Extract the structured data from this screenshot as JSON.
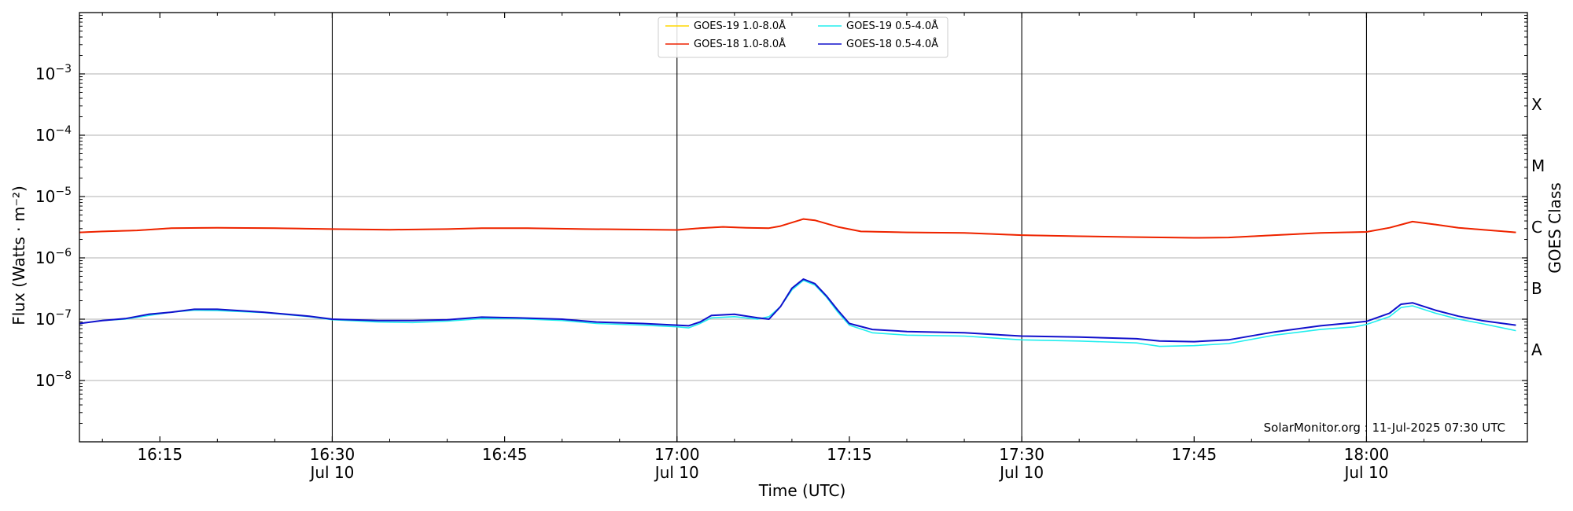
{
  "chart_data": {
    "type": "line",
    "title": "",
    "xlabel": "Time (UTC)",
    "ylabel": "Flux (Watts · m⁻²)",
    "right_label": "GOES Class",
    "y_scale": "log",
    "xlim": [
      "16:08",
      "18:14"
    ],
    "ylim": [
      1e-09,
      0.01
    ],
    "grid": "horizontal",
    "legend_position": "top-center",
    "annotation": "SolarMonitor.org : 11-Jul-2025 07:30 UTC",
    "x_ticks": [
      {
        "time": "16:15",
        "label": "16:15",
        "date": ""
      },
      {
        "time": "16:30",
        "label": "16:30",
        "date": "Jul 10"
      },
      {
        "time": "16:45",
        "label": "16:45",
        "date": ""
      },
      {
        "time": "17:00",
        "label": "17:00",
        "date": "Jul 10"
      },
      {
        "time": "17:15",
        "label": "17:15",
        "date": ""
      },
      {
        "time": "17:30",
        "label": "17:30",
        "date": "Jul 10"
      },
      {
        "time": "17:45",
        "label": "17:45",
        "date": ""
      },
      {
        "time": "18:00",
        "label": "18:00",
        "date": "Jul 10"
      }
    ],
    "y_ticks": [
      {
        "value": 1e-08,
        "base": "10",
        "exp": "−8"
      },
      {
        "value": 1e-07,
        "base": "10",
        "exp": "−7"
      },
      {
        "value": 1e-06,
        "base": "10",
        "exp": "−6"
      },
      {
        "value": 1e-05,
        "base": "10",
        "exp": "−5"
      },
      {
        "value": 0.0001,
        "base": "10",
        "exp": "−4"
      },
      {
        "value": 0.001,
        "base": "10",
        "exp": "−3"
      }
    ],
    "vertical_lines": [
      "16:30",
      "17:00",
      "17:30",
      "18:00"
    ],
    "classes": [
      {
        "label": "A",
        "value": 3.16e-08
      },
      {
        "label": "B",
        "value": 3.16e-07
      },
      {
        "label": "C",
        "value": 3.16e-06
      },
      {
        "label": "M",
        "value": 3.16e-05
      },
      {
        "label": "X",
        "value": 0.000316
      }
    ],
    "series": [
      {
        "name": "GOES-19 1.0-8.0Å",
        "color": "#ffd700",
        "points": [
          [
            "16:08",
            2.6e-06
          ],
          [
            "16:10",
            2.7e-06
          ],
          [
            "16:13",
            2.8e-06
          ],
          [
            "16:16",
            3.05e-06
          ],
          [
            "16:20",
            3.1e-06
          ],
          [
            "16:25",
            3.05e-06
          ],
          [
            "16:30",
            2.95e-06
          ],
          [
            "16:35",
            2.88e-06
          ],
          [
            "16:40",
            2.95e-06
          ],
          [
            "16:43",
            3.05e-06
          ],
          [
            "16:47",
            3.05e-06
          ],
          [
            "16:52",
            2.95e-06
          ],
          [
            "16:56",
            2.9e-06
          ],
          [
            "17:00",
            2.85e-06
          ],
          [
            "17:02",
            3.05e-06
          ],
          [
            "17:04",
            3.2e-06
          ],
          [
            "17:06",
            3.1e-06
          ],
          [
            "17:08",
            3.05e-06
          ],
          [
            "17:09",
            3.3e-06
          ],
          [
            "17:11",
            4.3e-06
          ],
          [
            "17:12",
            4.1e-06
          ],
          [
            "17:14",
            3.2e-06
          ],
          [
            "17:16",
            2.7e-06
          ],
          [
            "17:20",
            2.6e-06
          ],
          [
            "17:25",
            2.55e-06
          ],
          [
            "17:30",
            2.35e-06
          ],
          [
            "17:35",
            2.25e-06
          ],
          [
            "17:40",
            2.18e-06
          ],
          [
            "17:45",
            2.12e-06
          ],
          [
            "17:48",
            2.15e-06
          ],
          [
            "17:52",
            2.35e-06
          ],
          [
            "17:56",
            2.55e-06
          ],
          [
            "18:00",
            2.65e-06
          ],
          [
            "18:02",
            3.1e-06
          ],
          [
            "18:04",
            3.9e-06
          ],
          [
            "18:06",
            3.5e-06
          ],
          [
            "18:08",
            3.1e-06
          ],
          [
            "18:13",
            2.6e-06
          ]
        ]
      },
      {
        "name": "GOES-18 1.0-8.0Å",
        "color": "#ee2200",
        "points": [
          [
            "16:08",
            2.6e-06
          ],
          [
            "16:10",
            2.7e-06
          ],
          [
            "16:13",
            2.8e-06
          ],
          [
            "16:16",
            3.05e-06
          ],
          [
            "16:20",
            3.1e-06
          ],
          [
            "16:25",
            3.05e-06
          ],
          [
            "16:30",
            2.95e-06
          ],
          [
            "16:35",
            2.88e-06
          ],
          [
            "16:40",
            2.95e-06
          ],
          [
            "16:43",
            3.05e-06
          ],
          [
            "16:47",
            3.05e-06
          ],
          [
            "16:52",
            2.95e-06
          ],
          [
            "16:56",
            2.9e-06
          ],
          [
            "17:00",
            2.85e-06
          ],
          [
            "17:02",
            3.05e-06
          ],
          [
            "17:04",
            3.2e-06
          ],
          [
            "17:06",
            3.1e-06
          ],
          [
            "17:08",
            3.05e-06
          ],
          [
            "17:09",
            3.3e-06
          ],
          [
            "17:11",
            4.3e-06
          ],
          [
            "17:12",
            4.1e-06
          ],
          [
            "17:14",
            3.2e-06
          ],
          [
            "17:16",
            2.7e-06
          ],
          [
            "17:20",
            2.6e-06
          ],
          [
            "17:25",
            2.55e-06
          ],
          [
            "17:30",
            2.35e-06
          ],
          [
            "17:35",
            2.25e-06
          ],
          [
            "17:40",
            2.18e-06
          ],
          [
            "17:45",
            2.12e-06
          ],
          [
            "17:48",
            2.15e-06
          ],
          [
            "17:52",
            2.35e-06
          ],
          [
            "17:56",
            2.55e-06
          ],
          [
            "18:00",
            2.65e-06
          ],
          [
            "18:02",
            3.1e-06
          ],
          [
            "18:04",
            3.9e-06
          ],
          [
            "18:06",
            3.5e-06
          ],
          [
            "18:08",
            3.1e-06
          ],
          [
            "18:13",
            2.6e-06
          ]
        ]
      },
      {
        "name": "GOES-19 0.5-4.0Å",
        "color": "#22eeee",
        "points": [
          [
            "16:08",
            8.5e-08
          ],
          [
            "16:10",
            9.5e-08
          ],
          [
            "16:12",
            1e-07
          ],
          [
            "16:14",
            1.15e-07
          ],
          [
            "16:16",
            1.3e-07
          ],
          [
            "16:18",
            1.4e-07
          ],
          [
            "16:20",
            1.38e-07
          ],
          [
            "16:24",
            1.28e-07
          ],
          [
            "16:28",
            1.1e-07
          ],
          [
            "16:30",
            9.8e-08
          ],
          [
            "16:34",
            9e-08
          ],
          [
            "16:37",
            8.8e-08
          ],
          [
            "16:40",
            9.3e-08
          ],
          [
            "16:43",
            1.02e-07
          ],
          [
            "16:46",
            1.02e-07
          ],
          [
            "16:50",
            9.5e-08
          ],
          [
            "16:53",
            8.5e-08
          ],
          [
            "16:57",
            8e-08
          ],
          [
            "17:00",
            7.5e-08
          ],
          [
            "17:01",
            7.2e-08
          ],
          [
            "17:02",
            8.5e-08
          ],
          [
            "17:03",
            1.05e-07
          ],
          [
            "17:05",
            1.1e-07
          ],
          [
            "17:07",
            1e-07
          ],
          [
            "17:08",
            1.1e-07
          ],
          [
            "17:09",
            1.6e-07
          ],
          [
            "17:10",
            3e-07
          ],
          [
            "17:11",
            4.3e-07
          ],
          [
            "17:12",
            3.6e-07
          ],
          [
            "17:13",
            2.3e-07
          ],
          [
            "17:14",
            1.3e-07
          ],
          [
            "17:15",
            8e-08
          ],
          [
            "17:17",
            6e-08
          ],
          [
            "17:20",
            5.5e-08
          ],
          [
            "17:25",
            5.3e-08
          ],
          [
            "17:30",
            4.6e-08
          ],
          [
            "17:35",
            4.4e-08
          ],
          [
            "17:40",
            4.1e-08
          ],
          [
            "17:42",
            3.6e-08
          ],
          [
            "17:45",
            3.7e-08
          ],
          [
            "17:48",
            4e-08
          ],
          [
            "17:52",
            5.5e-08
          ],
          [
            "17:56",
            6.8e-08
          ],
          [
            "17:59",
            7.5e-08
          ],
          [
            "18:00",
            8.2e-08
          ],
          [
            "18:02",
            1.1e-07
          ],
          [
            "18:03",
            1.55e-07
          ],
          [
            "18:04",
            1.65e-07
          ],
          [
            "18:06",
            1.25e-07
          ],
          [
            "18:08",
            1e-07
          ],
          [
            "18:10",
            8.5e-08
          ],
          [
            "18:13",
            6.5e-08
          ]
        ]
      },
      {
        "name": "GOES-18 0.5-4.0Å",
        "color": "#1111cc",
        "points": [
          [
            "16:08",
            8.5e-08
          ],
          [
            "16:10",
            9.5e-08
          ],
          [
            "16:12",
            1.02e-07
          ],
          [
            "16:14",
            1.2e-07
          ],
          [
            "16:16",
            1.3e-07
          ],
          [
            "16:18",
            1.45e-07
          ],
          [
            "16:20",
            1.45e-07
          ],
          [
            "16:24",
            1.3e-07
          ],
          [
            "16:28",
            1.12e-07
          ],
          [
            "16:30",
            1e-07
          ],
          [
            "16:34",
            9.5e-08
          ],
          [
            "16:37",
            9.5e-08
          ],
          [
            "16:40",
            9.8e-08
          ],
          [
            "16:43",
            1.08e-07
          ],
          [
            "16:46",
            1.05e-07
          ],
          [
            "16:50",
            1e-07
          ],
          [
            "16:53",
            9e-08
          ],
          [
            "16:57",
            8.5e-08
          ],
          [
            "17:00",
            8e-08
          ],
          [
            "17:01",
            7.8e-08
          ],
          [
            "17:02",
            9e-08
          ],
          [
            "17:03",
            1.15e-07
          ],
          [
            "17:05",
            1.2e-07
          ],
          [
            "17:07",
            1.05e-07
          ],
          [
            "17:08",
            1e-07
          ],
          [
            "17:09",
            1.6e-07
          ],
          [
            "17:10",
            3.2e-07
          ],
          [
            "17:11",
            4.5e-07
          ],
          [
            "17:12",
            3.8e-07
          ],
          [
            "17:13",
            2.4e-07
          ],
          [
            "17:14",
            1.4e-07
          ],
          [
            "17:15",
            8.5e-08
          ],
          [
            "17:17",
            6.8e-08
          ],
          [
            "17:20",
            6.3e-08
          ],
          [
            "17:25",
            6e-08
          ],
          [
            "17:30",
            5.3e-08
          ],
          [
            "17:35",
            5.1e-08
          ],
          [
            "17:40",
            4.8e-08
          ],
          [
            "17:42",
            4.4e-08
          ],
          [
            "17:45",
            4.3e-08
          ],
          [
            "17:48",
            4.6e-08
          ],
          [
            "17:52",
            6.2e-08
          ],
          [
            "17:56",
            7.8e-08
          ],
          [
            "17:59",
            8.8e-08
          ],
          [
            "18:00",
            9.2e-08
          ],
          [
            "18:02",
            1.25e-07
          ],
          [
            "18:03",
            1.75e-07
          ],
          [
            "18:04",
            1.85e-07
          ],
          [
            "18:06",
            1.4e-07
          ],
          [
            "18:08",
            1.12e-07
          ],
          [
            "18:10",
            9.5e-08
          ],
          [
            "18:13",
            8e-08
          ]
        ]
      }
    ]
  }
}
